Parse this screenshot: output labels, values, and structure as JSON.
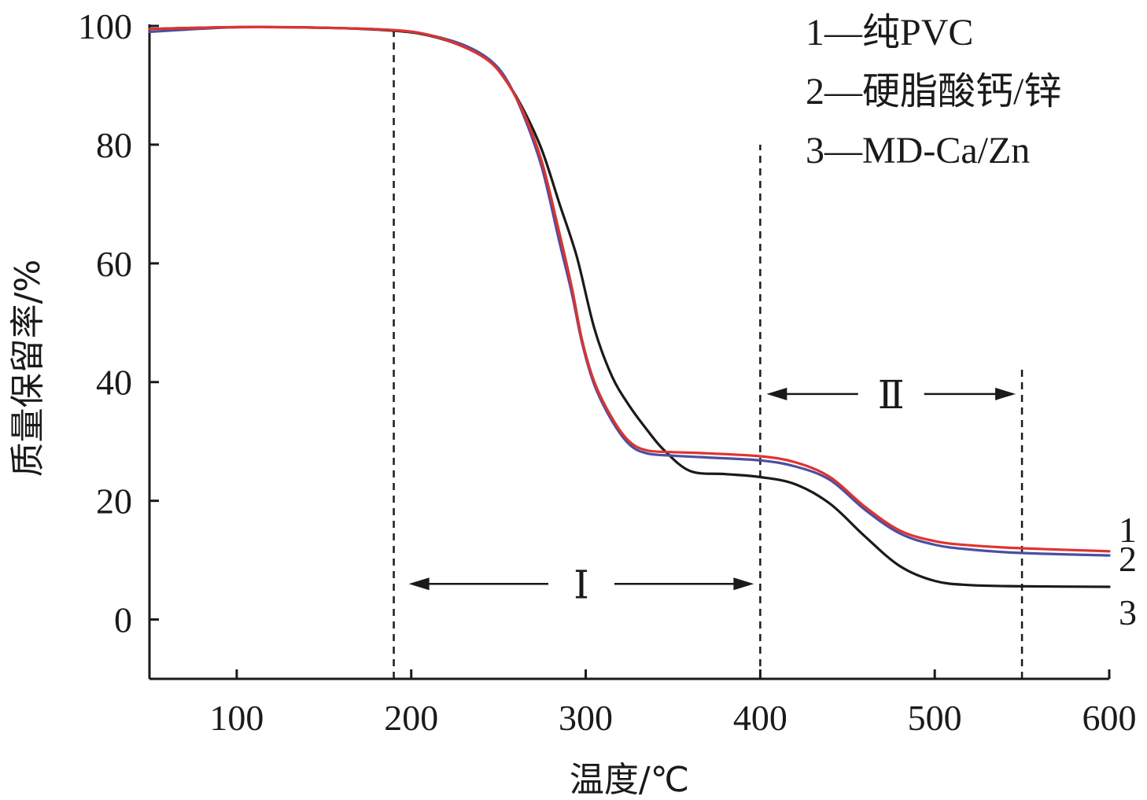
{
  "chart_data": {
    "type": "line",
    "xlabel": "温度/℃",
    "ylabel": "质量保留率/%",
    "xlim": [
      50,
      600
    ],
    "ylim": [
      -10,
      100
    ],
    "xticks": [
      100,
      200,
      300,
      400,
      500,
      600
    ],
    "yticks": [
      0,
      20,
      40,
      60,
      80,
      100
    ],
    "grid": false,
    "legend_position": "top-right",
    "legend": [
      "1—纯PVC",
      "2—硬脂酸钙/锌",
      "3—MD-Ca/Zn"
    ],
    "series": [
      {
        "name": "1",
        "color": "#e0332e",
        "x": [
          50,
          100,
          150,
          190,
          210,
          230,
          245,
          255,
          265,
          275,
          285,
          292,
          298,
          305,
          315,
          325,
          335,
          350,
          370,
          400,
          420,
          440,
          460,
          480,
          500,
          520,
          550,
          600
        ],
        "y": [
          99.5,
          99.8,
          99.7,
          99.3,
          98.5,
          96.5,
          94.0,
          90.5,
          85.0,
          77.0,
          65.0,
          56.0,
          47.0,
          40.0,
          34.0,
          30.0,
          28.5,
          28.2,
          28.0,
          27.5,
          26.5,
          24.0,
          19.0,
          15.0,
          13.2,
          12.5,
          12.0,
          11.5
        ]
      },
      {
        "name": "2",
        "color": "#4a4fa3",
        "x": [
          50,
          100,
          150,
          190,
          210,
          230,
          245,
          255,
          265,
          275,
          285,
          292,
          298,
          305,
          315,
          325,
          335,
          350,
          370,
          400,
          420,
          440,
          460,
          480,
          500,
          520,
          550,
          600
        ],
        "y": [
          99.0,
          99.8,
          99.7,
          99.3,
          98.5,
          96.8,
          94.3,
          90.8,
          84.5,
          76.0,
          63.5,
          55.0,
          46.5,
          39.5,
          33.5,
          29.5,
          28.0,
          27.6,
          27.3,
          26.8,
          25.8,
          23.5,
          18.5,
          14.5,
          12.6,
          11.8,
          11.2,
          10.8
        ]
      },
      {
        "name": "3",
        "color": "#1a1a1a",
        "x": [
          50,
          100,
          150,
          190,
          210,
          230,
          245,
          255,
          265,
          275,
          285,
          295,
          305,
          315,
          325,
          335,
          345,
          360,
          380,
          400,
          420,
          440,
          460,
          480,
          500,
          520,
          550,
          600
        ],
        "y": [
          99.5,
          99.8,
          99.7,
          99.2,
          98.4,
          96.5,
          94.0,
          90.5,
          85.5,
          79.0,
          70.0,
          61.0,
          49.0,
          41.0,
          36.0,
          32.0,
          28.5,
          25.0,
          24.5,
          24.0,
          22.8,
          19.5,
          14.0,
          9.0,
          6.5,
          5.8,
          5.6,
          5.5
        ]
      }
    ],
    "curve_labels": [
      {
        "text": "1",
        "x": 600,
        "y": 11.5
      },
      {
        "text": "2",
        "x": 600,
        "y": 10.8
      },
      {
        "text": "3",
        "x": 600,
        "y": 5.5
      }
    ],
    "vertical_lines": [
      {
        "x": 190,
        "y_from": -10,
        "y_to": 100
      },
      {
        "x": 400,
        "y_from": -10,
        "y_to": 80
      },
      {
        "x": 550,
        "y_from": -10,
        "y_to": 43
      }
    ],
    "regions": [
      {
        "label": "Ⅰ",
        "x_from": 195,
        "x_to": 400,
        "y": 6
      },
      {
        "label": "Ⅱ",
        "x_from": 400,
        "x_to": 550,
        "y": 38
      }
    ]
  }
}
